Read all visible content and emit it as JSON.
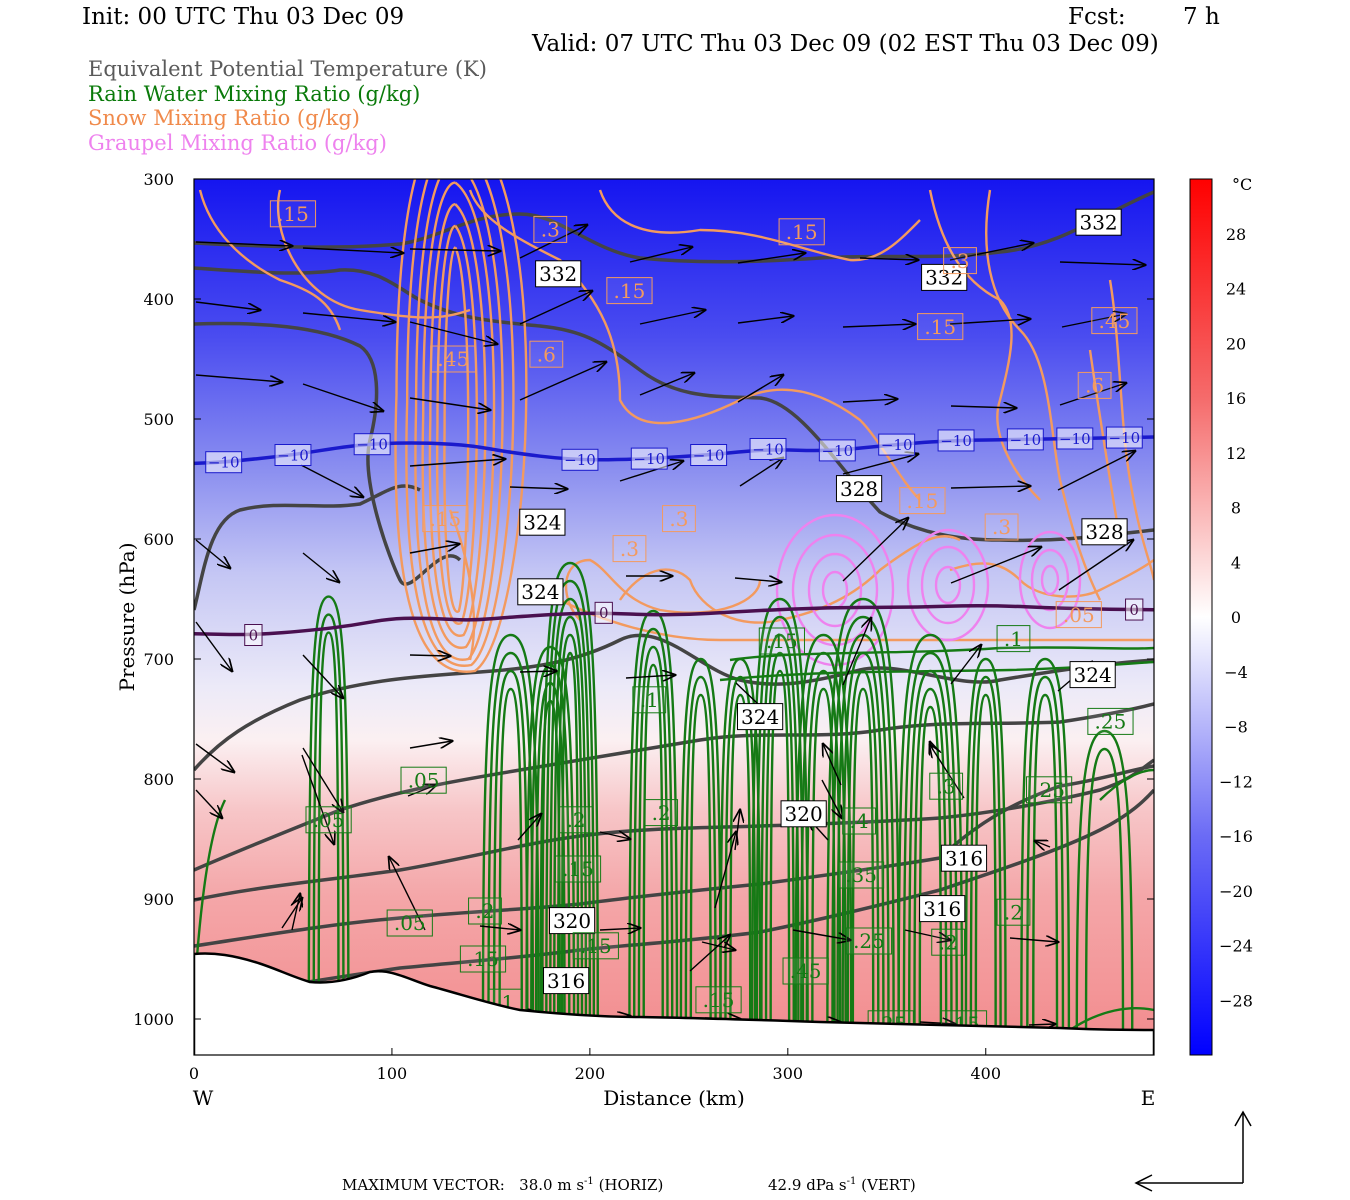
{
  "header": {
    "init": "Init: 00 UTC Thu 03 Dec 09",
    "fcst_label": "Fcst:",
    "fcst_value": "7 h",
    "valid": "Valid: 07 UTC Thu 03 Dec 09 (02 EST Thu 03 Dec 09)"
  },
  "legend": [
    {
      "text": "Equivalent Potential Temperature (K)",
      "color": "#5a5a5a"
    },
    {
      "text": "Rain Water Mixing Ratio (g/kg)",
      "color": "#0a7a0a"
    },
    {
      "text": "Snow Mixing Ratio (g/kg)",
      "color": "#f08a4b"
    },
    {
      "text": "Graupel Mixing Ratio (g/kg)",
      "color": "#ee82ee"
    }
  ],
  "footer": {
    "max_vector_label": "MAXIMUM VECTOR:",
    "horiz_value": "38.0",
    "horiz_unit": "m s",
    "horiz_suffix": "(HORIZ)",
    "vert_value": "42.9",
    "vert_unit": "dPa s",
    "vert_suffix": "(VERT)",
    "exponent": "-1"
  },
  "chart_data": {
    "type": "cross-section",
    "xlabel": "Distance (km)",
    "ylabel": "Pressure (hPa)",
    "xlim": [
      0,
      485
    ],
    "ylim": [
      1030,
      300
    ],
    "x_ticks": [
      0,
      100,
      200,
      300,
      400
    ],
    "y_ticks": [
      300,
      400,
      500,
      600,
      700,
      800,
      900,
      1000
    ],
    "left_end_label": "W",
    "right_end_label": "E",
    "colorbar": {
      "unit": "°C",
      "range": [
        -32,
        32
      ],
      "tick_labels": [
        28,
        24,
        20,
        16,
        12,
        8,
        4,
        0,
        -4,
        -8,
        -12,
        -16,
        -20,
        -24,
        -28
      ],
      "cold_color": "#0000ff",
      "neutral_color": "#ffffff",
      "warm_color": "#ff0000"
    },
    "isotherms": [
      {
        "value": -10,
        "label": "-10",
        "color": "#1a1acc",
        "points": [
          [
            0,
            537
          ],
          [
            15,
            536
          ],
          [
            50,
            530
          ],
          [
            80,
            522
          ],
          [
            100,
            520
          ],
          [
            120,
            520
          ],
          [
            140,
            522
          ],
          [
            160,
            528
          ],
          [
            190,
            534
          ],
          [
            220,
            534
          ],
          [
            260,
            530
          ],
          [
            290,
            525
          ],
          [
            320,
            527
          ],
          [
            350,
            522
          ],
          [
            380,
            518
          ],
          [
            420,
            517
          ],
          [
            485,
            515
          ]
        ],
        "label_x": [
          15,
          50,
          90,
          195,
          230,
          260,
          290,
          325,
          355,
          385,
          420,
          445,
          470
        ]
      },
      {
        "value": 0,
        "label": "0",
        "color": "#4a1050",
        "points": [
          [
            0,
            679
          ],
          [
            30,
            680
          ],
          [
            60,
            676
          ],
          [
            80,
            672
          ],
          [
            100,
            666
          ],
          [
            120,
            666
          ],
          [
            140,
            668
          ],
          [
            160,
            665
          ],
          [
            200,
            661
          ],
          [
            240,
            664
          ],
          [
            280,
            660
          ],
          [
            320,
            657
          ],
          [
            360,
            657
          ],
          [
            400,
            655
          ],
          [
            440,
            658
          ],
          [
            485,
            659
          ]
        ],
        "label_x": [
          30,
          207,
          475
        ]
      }
    ],
    "theta_e_labels": [
      {
        "value": "332",
        "x": 184,
        "p": 379
      },
      {
        "value": "332",
        "x": 379,
        "p": 382
      },
      {
        "value": "332",
        "x": 457,
        "p": 336
      },
      {
        "value": "328",
        "x": 336,
        "p": 558
      },
      {
        "value": "328",
        "x": 460,
        "p": 594
      },
      {
        "value": "324",
        "x": 176,
        "p": 586
      },
      {
        "value": "324",
        "x": 175,
        "p": 644
      },
      {
        "value": "324",
        "x": 286,
        "p": 748
      },
      {
        "value": "324",
        "x": 454,
        "p": 713
      },
      {
        "value": "320",
        "x": 308,
        "p": 829
      },
      {
        "value": "320",
        "x": 191,
        "p": 918
      },
      {
        "value": "316",
        "x": 378,
        "p": 908
      },
      {
        "value": "316",
        "x": 389,
        "p": 866
      },
      {
        "value": "316",
        "x": 188,
        "p": 968
      }
    ],
    "rain_labels": [
      {
        "value": ".05",
        "x": 68,
        "p": 834
      },
      {
        "value": ".05",
        "x": 116,
        "p": 801
      },
      {
        "value": ".05",
        "x": 109,
        "p": 920
      },
      {
        "value": ".1",
        "x": 230,
        "p": 734
      },
      {
        "value": ".1",
        "x": 157,
        "p": 986
      },
      {
        "value": ".1",
        "x": 414,
        "p": 683
      },
      {
        "value": ".15",
        "x": 194,
        "p": 875
      },
      {
        "value": ".15",
        "x": 203,
        "p": 939
      },
      {
        "value": ".15",
        "x": 146,
        "p": 950
      },
      {
        "value": ".15",
        "x": 265,
        "p": 984
      },
      {
        "value": ".15",
        "x": 389,
        "p": 1004
      },
      {
        "value": ".15",
        "x": 297,
        "p": 685
      },
      {
        "value": ".2",
        "x": 193,
        "p": 834
      },
      {
        "value": ".2",
        "x": 236,
        "p": 828
      },
      {
        "value": ".2",
        "x": 147,
        "p": 910
      },
      {
        "value": ".2",
        "x": 381,
        "p": 936
      },
      {
        "value": ".2",
        "x": 414,
        "p": 911
      },
      {
        "value": ".25",
        "x": 463,
        "p": 752
      },
      {
        "value": ".25",
        "x": 432,
        "p": 809
      },
      {
        "value": ".25",
        "x": 341,
        "p": 935
      },
      {
        "value": ".25",
        "x": 352,
        "p": 1004
      },
      {
        "value": ".3",
        "x": 380,
        "p": 806
      },
      {
        "value": ".35",
        "x": 337,
        "p": 880
      },
      {
        "value": ".4",
        "x": 336,
        "p": 835
      },
      {
        "value": ".45",
        "x": 309,
        "p": 960
      }
    ],
    "snow_labels": [
      {
        "value": ".15",
        "x": 50,
        "p": 329
      },
      {
        "value": ".15",
        "x": 220,
        "p": 393
      },
      {
        "value": ".15",
        "x": 307,
        "p": 344
      },
      {
        "value": ".15",
        "x": 377,
        "p": 423
      },
      {
        "value": ".15",
        "x": 127,
        "p": 583
      },
      {
        "value": ".15",
        "x": 368,
        "p": 568
      },
      {
        "value": ".3",
        "x": 180,
        "p": 342
      },
      {
        "value": ".3",
        "x": 245,
        "p": 583
      },
      {
        "value": ".3",
        "x": 220,
        "p": 608
      },
      {
        "value": ".3",
        "x": 408,
        "p": 590
      },
      {
        "value": ".3",
        "x": 387,
        "p": 368
      },
      {
        "value": ".45",
        "x": 131,
        "p": 450
      },
      {
        "value": ".45",
        "x": 465,
        "p": 418
      },
      {
        "value": ".6",
        "x": 178,
        "p": 446
      },
      {
        "value": ".6",
        "x": 455,
        "p": 472
      },
      {
        "value": ".05",
        "x": 447,
        "p": 663
      }
    ]
  }
}
